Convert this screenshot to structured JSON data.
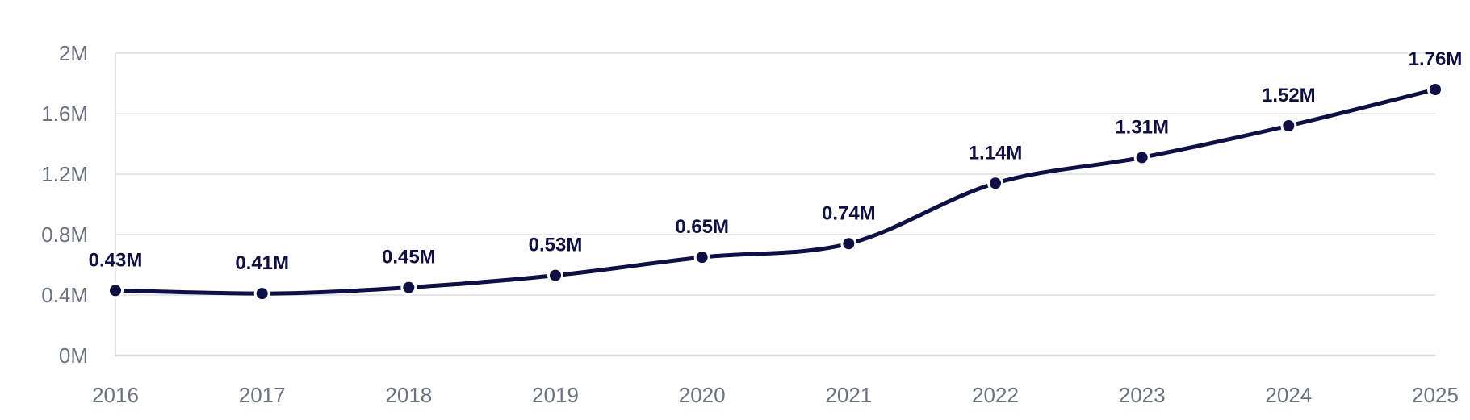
{
  "chart_data": {
    "type": "line",
    "title": "",
    "xlabel": "",
    "ylabel": "",
    "categories": [
      "2016",
      "2017",
      "2018",
      "2019",
      "2020",
      "2021",
      "2022",
      "2023",
      "2024",
      "2025"
    ],
    "series": [
      {
        "values": [
          0.43,
          0.41,
          0.45,
          0.53,
          0.65,
          0.74,
          1.14,
          1.31,
          1.52,
          1.76
        ],
        "data_labels": [
          "0.43M",
          "0.41M",
          "0.45M",
          "0.53M",
          "0.65M",
          "0.74M",
          "1.14M",
          "1.31M",
          "1.52M",
          "1.76M"
        ]
      }
    ],
    "y_ticks": [
      0,
      0.4,
      0.8,
      1.2,
      1.6,
      2
    ],
    "y_tick_labels": [
      "0M",
      "0.4M",
      "0.8M",
      "1.2M",
      "1.6M",
      "2M"
    ],
    "ylim": [
      0,
      2
    ],
    "grid": true,
    "legend": "none",
    "colors": {
      "line": "#0d0f45",
      "grid": "#e5e7eb",
      "axis": "#d1d5db",
      "tick_text": "#6b7280",
      "label_text": "#0d0f45"
    }
  }
}
